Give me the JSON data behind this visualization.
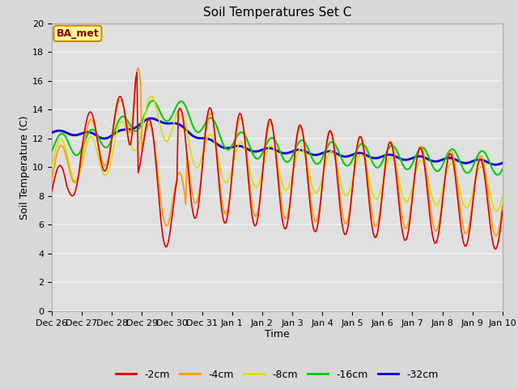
{
  "title": "Soil Temperatures Set C",
  "xlabel": "Time",
  "ylabel": "Soil Temperature (C)",
  "ylim": [
    0,
    20
  ],
  "yticks": [
    0,
    2,
    4,
    6,
    8,
    10,
    12,
    14,
    16,
    18,
    20
  ],
  "xtick_labels": [
    "Dec 26",
    "Dec 27",
    "Dec 28",
    "Dec 29",
    "Dec 30",
    "Dec 31",
    "Jan 1",
    "Jan 2",
    "Jan 3",
    "Jan 4",
    "Jan 5",
    "Jan 6",
    "Jan 7",
    "Jan 8",
    "Jan 9",
    "Jan 10"
  ],
  "legend_labels": [
    "-2cm",
    "-4cm",
    "-8cm",
    "-16cm",
    "-32cm"
  ],
  "line_colors": [
    "#dd0000",
    "#ff9900",
    "#dddd00",
    "#00cc00",
    "#0000dd"
  ],
  "line_widths": [
    1.2,
    1.2,
    1.2,
    1.5,
    2.0
  ],
  "annotation_text": "BA_met",
  "fig_bg": "#d8d8d8",
  "plot_bg": "#e0e0e0",
  "grid_color": "#f0f0f0"
}
